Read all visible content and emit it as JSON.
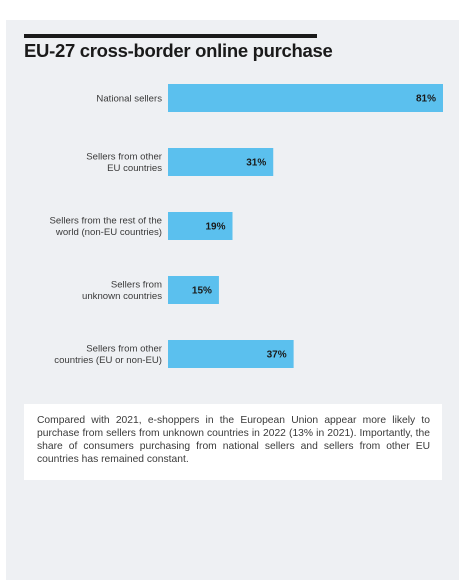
{
  "chart_data": {
    "type": "bar",
    "orientation": "horizontal",
    "title": "EU-27 cross-border online purchase",
    "categories": [
      [
        "National sellers"
      ],
      [
        "Sellers from other",
        "EU countries"
      ],
      [
        "Sellers from the rest of the",
        "world (non-EU countries)"
      ],
      [
        "Sellers from",
        "unknown countries"
      ],
      [
        "Sellers from other",
        "countries (EU or non-EU)"
      ]
    ],
    "values": [
      81,
      31,
      19,
      15,
      37
    ],
    "value_labels": [
      "81%",
      "31%",
      "19%",
      "15%",
      "37%"
    ],
    "unit": "%",
    "xlim": [
      0,
      81
    ],
    "grid": false,
    "bar_color": "#5bc0ee"
  },
  "note": {
    "text": "Compared with 2021, e-shoppers in the European Union appear more likely to purchase from sellers from unknown countries in 2022 (13% in 2021). Importantly, the share of consumers purchasing from national sellers and sellers from other EU countries has remained constant."
  }
}
